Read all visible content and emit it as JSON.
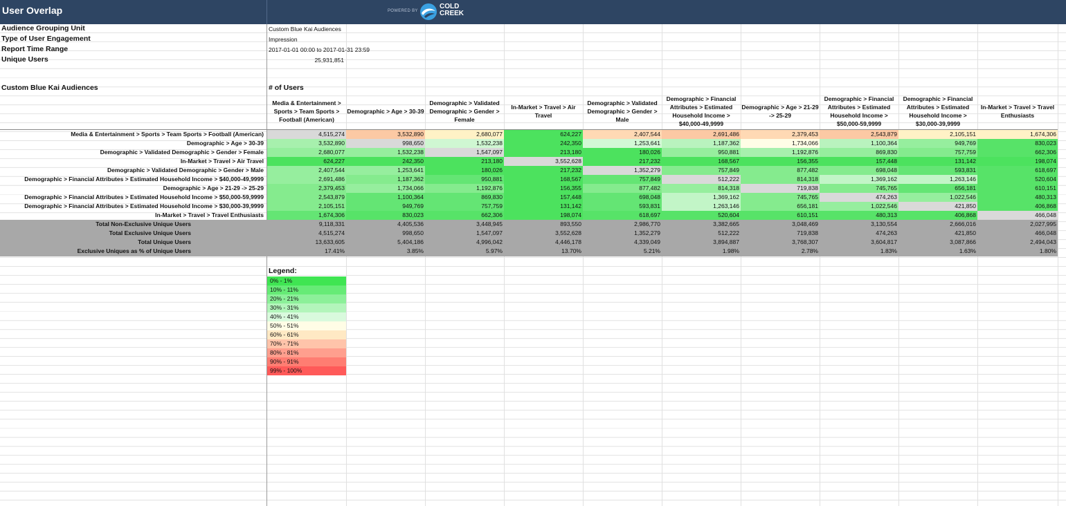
{
  "window": {
    "title": "User Overlap"
  },
  "header": {
    "powered_by": "POWERED BY",
    "brand_line1": "COLD",
    "brand_line2": "CREEK",
    "logo_icon": "cold-creek-wave-icon"
  },
  "meta": [
    {
      "label": "Audience Grouping Unit",
      "value": "Custom Blue Kai Audiences"
    },
    {
      "label": "Type of User Engagement",
      "value": "Impression"
    },
    {
      "label": "Report Time Range",
      "value": "2017-01-01 00:00 to 2017-01-31 23:59"
    },
    {
      "label": "Unique Users",
      "value": "25,931,851"
    }
  ],
  "section": {
    "title": "Custom Blue Kai Audiences",
    "users_label": "# of Users"
  },
  "columns": [
    "Media & Entertainment > Sports > Team Sports > Football (American)",
    "Demographic > Age > 30-39",
    "Demographic > Validated Demographic > Gender > Female",
    "In-Market > Travel > Air Travel",
    "Demographic > Validated Demographic > Gender > Male",
    "Demographic > Financial Attributes > Estimated Household Income > $40,000-49,9999",
    "Demographic > Age > 21-29 -> 25-29",
    "Demographic > Financial Attributes > Estimated Household Income > $50,000-59,9999",
    "Demographic > Financial Attributes > Estimated Household Income > $30,000-39,9999",
    "In-Market > Travel > Travel Enthusiasts"
  ],
  "rows": [
    {
      "label": "Media & Entertainment > Sports > Team Sports > Football (American)",
      "values": [
        "4,515,274",
        "3,532,890",
        "2,680,077",
        "624,227",
        "2,407,544",
        "2,691,486",
        "2,379,453",
        "2,543,879",
        "2,105,151",
        "1,674,306"
      ],
      "colors": [
        "#d9d9d9",
        "#fcc9a4",
        "#fff2c6",
        "#4ce25e",
        "#ffd9b4",
        "#fcc9a4",
        "#ffd9b4",
        "#fcc9a4",
        "#fff2c6",
        "#fff2c6"
      ]
    },
    {
      "label": "Demographic > Age > 30-39",
      "values": [
        "3,532,890",
        "998,650",
        "1,532,238",
        "242,350",
        "1,253,641",
        "1,187,362",
        "1,734,066",
        "1,100,364",
        "949,769",
        "830,023"
      ],
      "colors": [
        "#a7f0ad",
        "#d9d9d9",
        "#cff7d2",
        "#4ce25e",
        "#d2f8d5",
        "#b9f3be",
        "#fffde6",
        "#b9f3be",
        "#96ee9e",
        "#57e368"
      ]
    },
    {
      "label": "Demographic > Validated Demographic > Gender > Female",
      "values": [
        "2,680,077",
        "1,532,238",
        "1,547,097",
        "213,180",
        "180,026",
        "950,881",
        "1,192,876",
        "869,830",
        "757,759",
        "662,306"
      ],
      "colors": [
        "#96ee9e",
        "#96ee9e",
        "#d9d9d9",
        "#4ce25e",
        "#4ce25e",
        "#96ee9e",
        "#a7f0ad",
        "#96ee9e",
        "#85eb8e",
        "#57e368"
      ]
    },
    {
      "label": "In-Market > Travel > Air Travel",
      "values": [
        "624,227",
        "242,350",
        "213,180",
        "3,552,628",
        "217,232",
        "168,567",
        "156,355",
        "157,448",
        "131,142",
        "198,074"
      ],
      "colors": [
        "#4ce25e",
        "#4ce25e",
        "#4ce25e",
        "#d9d9d9",
        "#4ce25e",
        "#4ce25e",
        "#4ce25e",
        "#4ce25e",
        "#4ce25e",
        "#4ce25e"
      ]
    },
    {
      "label": "Demographic > Validated Demographic > Gender > Male",
      "values": [
        "2,407,544",
        "1,253,641",
        "180,026",
        "217,232",
        "1,352,279",
        "757,849",
        "877,482",
        "698,048",
        "593,831",
        "618,697"
      ],
      "colors": [
        "#96ee9e",
        "#96ee9e",
        "#4ce25e",
        "#4ce25e",
        "#d9d9d9",
        "#85eb8e",
        "#85eb8e",
        "#85eb8e",
        "#64e574",
        "#57e368"
      ]
    },
    {
      "label": "Demographic > Financial Attributes > Estimated Household Income > $40,000-49,9999",
      "values": [
        "2,691,486",
        "1,187,362",
        "950,881",
        "168,567",
        "757,849",
        "512,222",
        "814,318",
        "1,369,162",
        "1,263,146",
        "520,604"
      ],
      "colors": [
        "#96ee9e",
        "#85eb8e",
        "#64e574",
        "#4ce25e",
        "#64e574",
        "#d9d9d9",
        "#85eb8e",
        "#c2f5c7",
        "#c2f5c7",
        "#57e368"
      ]
    },
    {
      "label": "Demographic > Age > 21-29 -> 25-29",
      "values": [
        "2,379,453",
        "1,734,066",
        "1,192,876",
        "156,355",
        "877,482",
        "814,318",
        "719,838",
        "745,765",
        "656,181",
        "610,151"
      ],
      "colors": [
        "#85eb8e",
        "#96ee9e",
        "#85eb8e",
        "#4ce25e",
        "#85eb8e",
        "#96ee9e",
        "#d9d9d9",
        "#85eb8e",
        "#64e574",
        "#57e368"
      ]
    },
    {
      "label": "Demographic > Financial Attributes > Estimated Household Income > $50,000-59,9999",
      "values": [
        "2,543,879",
        "1,100,364",
        "869,830",
        "157,448",
        "698,048",
        "1,369,162",
        "745,765",
        "474,263",
        "1,022,546",
        "480,313"
      ],
      "colors": [
        "#85eb8e",
        "#64e574",
        "#64e574",
        "#4ce25e",
        "#64e574",
        "#c2f5c7",
        "#85eb8e",
        "#d9d9d9",
        "#96ee9e",
        "#57e368"
      ]
    },
    {
      "label": "Demographic > Financial Attributes > Estimated Household Income > $30,000-39,9999",
      "values": [
        "2,105,151",
        "949,769",
        "757,759",
        "131,142",
        "593,831",
        "1,263,146",
        "656,181",
        "1,022,546",
        "421,850",
        "406,868"
      ],
      "colors": [
        "#85eb8e",
        "#64e574",
        "#64e574",
        "#4ce25e",
        "#64e574",
        "#c2f5c7",
        "#85eb8e",
        "#96ee9e",
        "#d9d9d9",
        "#57e368"
      ]
    },
    {
      "label": "In-Market > Travel > Travel Enthusiasts",
      "values": [
        "1,674,306",
        "830,023",
        "662,306",
        "198,074",
        "618,697",
        "520,604",
        "610,151",
        "480,313",
        "406,868",
        "466,048"
      ],
      "colors": [
        "#64e574",
        "#57e368",
        "#57e368",
        "#4ce25e",
        "#57e368",
        "#57e368",
        "#57e368",
        "#57e368",
        "#57e368",
        "#d9d9d9"
      ]
    }
  ],
  "totals": [
    {
      "label": "Total Non-Exclusive Unique Users",
      "values": [
        "9,118,331",
        "4,405,536",
        "3,448,945",
        "893,550",
        "2,986,770",
        "3,382,665",
        "3,048,469",
        "3,130,554",
        "2,666,016",
        "2,027,995"
      ]
    },
    {
      "label": "Total Exclusive Unique Users",
      "values": [
        "4,515,274",
        "998,650",
        "1,547,097",
        "3,552,628",
        "1,352,279",
        "512,222",
        "719,838",
        "474,263",
        "421,850",
        "466,048"
      ]
    },
    {
      "label": "Total Unique Users",
      "values": [
        "13,633,605",
        "5,404,186",
        "4,996,042",
        "4,446,178",
        "4,339,049",
        "3,894,887",
        "3,768,307",
        "3,604,817",
        "3,087,866",
        "2,494,043"
      ]
    },
    {
      "label": "Exclusive Uniques as % of Unique Users",
      "values": [
        "17.41%",
        "3.85%",
        "5.97%",
        "13.70%",
        "5.21%",
        "1.98%",
        "2.78%",
        "1.83%",
        "1.63%",
        "1.80%"
      ]
    }
  ],
  "legend": {
    "title": "Legend:",
    "items": [
      {
        "label": "0% -  1%",
        "color": "#3fe552"
      },
      {
        "label": "10% - 11%",
        "color": "#66eb76"
      },
      {
        "label": "20% - 21%",
        "color": "#8cf099"
      },
      {
        "label": "30% - 31%",
        "color": "#b3f5bb"
      },
      {
        "label": "40% - 41%",
        "color": "#d9fadd"
      },
      {
        "label": "50% - 51%",
        "color": "#fffde6"
      },
      {
        "label": "60% - 61%",
        "color": "#ffe9c4"
      },
      {
        "label": "70% - 71%",
        "color": "#ffc4aa"
      },
      {
        "label": "80% - 81%",
        "color": "#ff9f8e"
      },
      {
        "label": "90% - 91%",
        "color": "#ff7d72"
      },
      {
        "label": "99% - 100%",
        "color": "#ff5a59"
      }
    ]
  }
}
